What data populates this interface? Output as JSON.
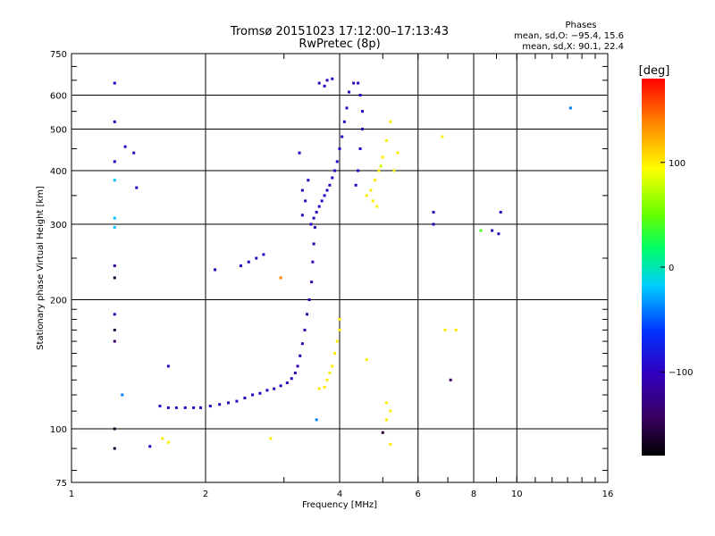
{
  "chart_data": {
    "type": "scatter",
    "title": "Tromsø 20151023 17:12:00–17:13:43",
    "subtitle": "RwPretec (8p)",
    "xlabel": "Frequency [MHz]",
    "ylabel": "Stationary phase Virtual Height [km]",
    "x_scale": "log",
    "y_scale": "log",
    "xlim": [
      1,
      16
    ],
    "ylim": [
      75,
      750
    ],
    "grid": true,
    "x_ticks": [
      1,
      2,
      4,
      6,
      8,
      10,
      16
    ],
    "x_tick_labels": [
      "1",
      "2",
      "4",
      "6",
      "8",
      "10",
      "16"
    ],
    "y_ticks": [
      75,
      100,
      200,
      300,
      400,
      500,
      600,
      750
    ],
    "y_tick_labels": [
      "75",
      "100",
      "200",
      "300",
      "400",
      "500",
      "600",
      "750"
    ],
    "phase_info": {
      "title": "Phases",
      "line_o": "mean, sd,O: −95.4, 15.6",
      "line_x": "mean, sd,X:  90.1, 22.4"
    },
    "colorbar": {
      "label": "[deg]",
      "range": [
        -180,
        180
      ],
      "ticks": [
        100,
        0,
        -100
      ],
      "tick_labels": [
        "100",
        "0",
        "−100"
      ]
    },
    "series": [
      {
        "marker_colors": "phase (deg)",
        "points": [
          [
            1.58,
            113,
            -100
          ],
          [
            1.65,
            112,
            -100
          ],
          [
            1.72,
            112,
            -100
          ],
          [
            1.8,
            112,
            -100
          ],
          [
            1.88,
            112,
            -100
          ],
          [
            1.95,
            112,
            -100
          ],
          [
            2.05,
            113,
            -100
          ],
          [
            2.15,
            114,
            -100
          ],
          [
            2.25,
            115,
            -100
          ],
          [
            2.35,
            116,
            -100
          ],
          [
            2.45,
            118,
            -100
          ],
          [
            2.55,
            120,
            -100
          ],
          [
            2.65,
            121,
            -100
          ],
          [
            2.75,
            123,
            -100
          ],
          [
            2.85,
            124,
            -100
          ],
          [
            2.95,
            126,
            -100
          ],
          [
            3.05,
            128,
            -100
          ],
          [
            3.12,
            131,
            -100
          ],
          [
            3.18,
            135,
            -110
          ],
          [
            3.22,
            140,
            -110
          ],
          [
            3.26,
            148,
            -110
          ],
          [
            3.3,
            158,
            -110
          ],
          [
            3.34,
            170,
            -110
          ],
          [
            3.38,
            185,
            -110
          ],
          [
            3.42,
            200,
            -110
          ],
          [
            3.46,
            220,
            -110
          ],
          [
            3.48,
            245,
            -110
          ],
          [
            3.5,
            270,
            -110
          ],
          [
            3.52,
            295,
            -110
          ],
          [
            3.45,
            300,
            -100
          ],
          [
            3.5,
            310,
            -100
          ],
          [
            3.55,
            320,
            -100
          ],
          [
            3.6,
            330,
            -100
          ],
          [
            3.65,
            340,
            -100
          ],
          [
            3.7,
            350,
            -100
          ],
          [
            3.75,
            360,
            -100
          ],
          [
            3.8,
            370,
            -100
          ],
          [
            3.85,
            385,
            -100
          ],
          [
            3.9,
            400,
            -100
          ],
          [
            3.95,
            420,
            -100
          ],
          [
            4.0,
            450,
            -100
          ],
          [
            4.05,
            480,
            -100
          ],
          [
            4.1,
            520,
            -100
          ],
          [
            4.15,
            560,
            -100
          ],
          [
            4.2,
            610,
            -100
          ],
          [
            4.3,
            640,
            -100
          ],
          [
            4.4,
            640,
            -100
          ],
          [
            4.45,
            600,
            -100
          ],
          [
            4.5,
            550,
            -100
          ],
          [
            4.5,
            500,
            -100
          ],
          [
            4.45,
            450,
            -100
          ],
          [
            4.4,
            400,
            -100
          ],
          [
            4.35,
            370,
            -100
          ],
          [
            3.6,
            640,
            -100
          ],
          [
            3.75,
            650,
            -100
          ],
          [
            3.85,
            655,
            -100
          ],
          [
            3.7,
            630,
            -100
          ],
          [
            3.3,
            315,
            -100
          ],
          [
            3.35,
            340,
            -100
          ],
          [
            3.4,
            380,
            -100
          ],
          [
            3.3,
            360,
            -100
          ],
          [
            3.25,
            440,
            -100
          ],
          [
            4.6,
            350,
            100
          ],
          [
            4.7,
            360,
            100
          ],
          [
            4.8,
            380,
            100
          ],
          [
            4.9,
            400,
            100
          ],
          [
            5.0,
            430,
            100
          ],
          [
            5.1,
            470,
            100
          ],
          [
            5.2,
            520,
            100
          ],
          [
            4.75,
            340,
            100
          ],
          [
            4.85,
            330,
            100
          ],
          [
            4.95,
            410,
            80
          ],
          [
            5.3,
            400,
            100
          ],
          [
            5.4,
            440,
            100
          ],
          [
            3.7,
            125,
            100
          ],
          [
            3.75,
            130,
            100
          ],
          [
            3.8,
            135,
            100
          ],
          [
            3.85,
            140,
            100
          ],
          [
            3.9,
            150,
            100
          ],
          [
            3.95,
            160,
            100
          ],
          [
            4.0,
            170,
            100
          ],
          [
            4.0,
            180,
            100
          ],
          [
            3.6,
            124,
            100
          ],
          [
            1.25,
            640,
            -100
          ],
          [
            1.25,
            520,
            -100
          ],
          [
            1.25,
            420,
            -100
          ],
          [
            1.25,
            380,
            -20
          ],
          [
            1.25,
            310,
            -20
          ],
          [
            1.25,
            295,
            -20
          ],
          [
            1.25,
            240,
            -120
          ],
          [
            1.25,
            225,
            -160
          ],
          [
            1.25,
            185,
            -100
          ],
          [
            1.25,
            170,
            -160
          ],
          [
            1.25,
            160,
            -140
          ],
          [
            1.25,
            100,
            -160
          ],
          [
            1.25,
            90,
            -160
          ],
          [
            1.3,
            120,
            -40
          ],
          [
            1.32,
            455,
            -100
          ],
          [
            1.38,
            440,
            -100
          ],
          [
            1.4,
            365,
            -100
          ],
          [
            1.5,
            91,
            -100
          ],
          [
            1.6,
            95,
            100
          ],
          [
            1.65,
            93,
            100
          ],
          [
            1.65,
            140,
            -100
          ],
          [
            6.8,
            480,
            100
          ],
          [
            6.5,
            320,
            -100
          ],
          [
            6.5,
            300,
            -100
          ],
          [
            6.9,
            170,
            100
          ],
          [
            7.3,
            170,
            100
          ],
          [
            7.1,
            130,
            -140
          ],
          [
            8.3,
            290,
            40
          ],
          [
            8.8,
            290,
            -100
          ],
          [
            9.1,
            285,
            -100
          ],
          [
            9.2,
            320,
            -100
          ],
          [
            13.2,
            560,
            -40
          ],
          [
            2.1,
            235,
            -100
          ],
          [
            2.4,
            240,
            -100
          ],
          [
            2.5,
            245,
            -100
          ],
          [
            2.6,
            250,
            -100
          ],
          [
            2.7,
            255,
            -100
          ],
          [
            5.0,
            98,
            -160
          ],
          [
            5.2,
            92,
            100
          ],
          [
            5.2,
            110,
            100
          ],
          [
            5.1,
            115,
            100
          ],
          [
            4.6,
            145,
            100
          ],
          [
            5.1,
            105,
            100
          ],
          [
            3.55,
            105,
            -40
          ],
          [
            2.8,
            95,
            100
          ],
          [
            2.95,
            225,
            140
          ]
        ]
      }
    ]
  }
}
